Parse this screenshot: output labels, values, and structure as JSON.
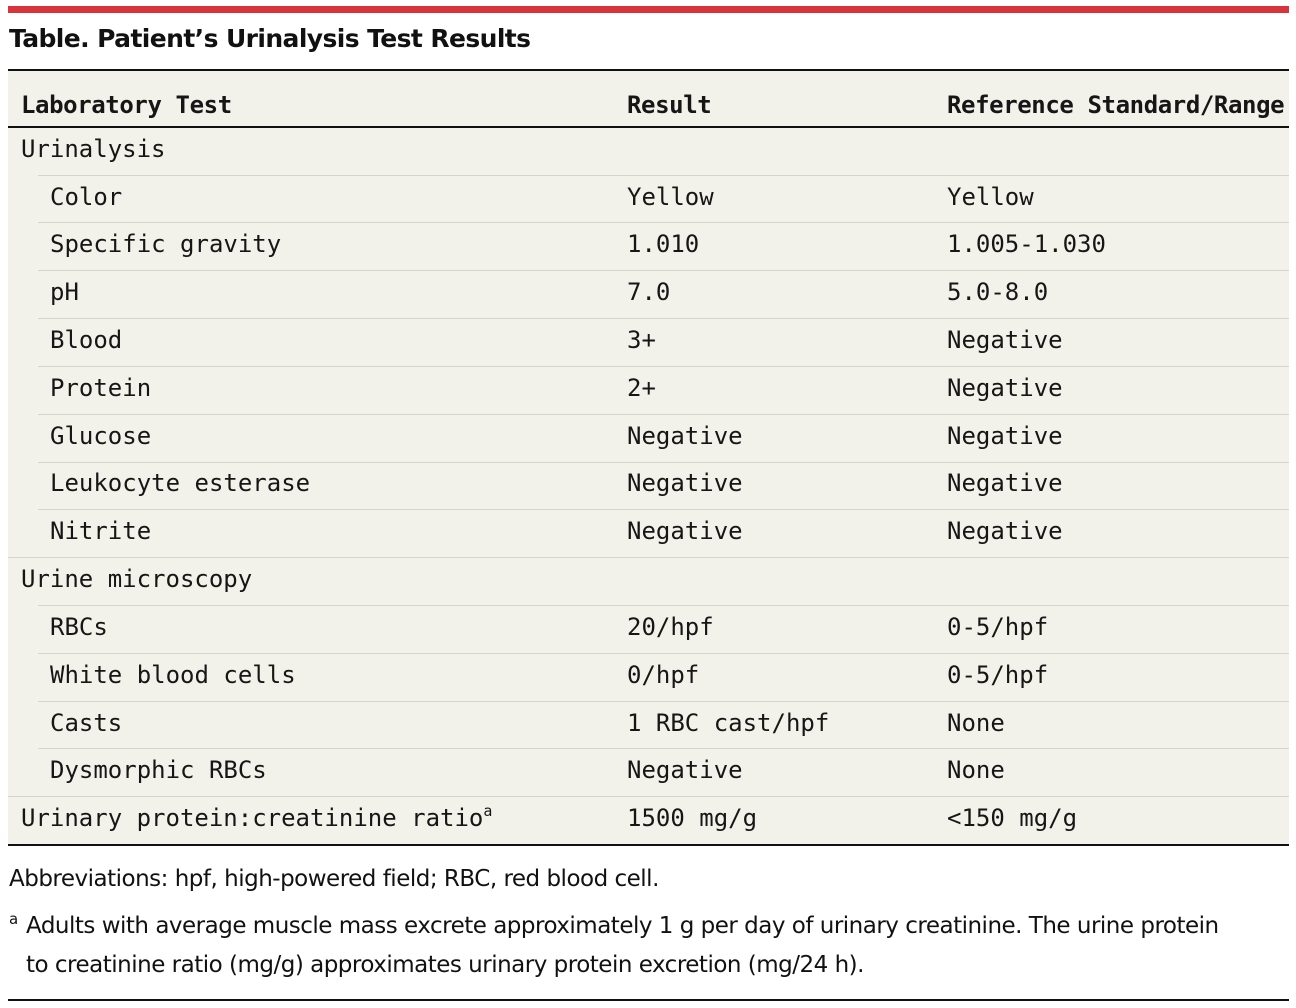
{
  "table": {
    "title": "Table. Patient’s Urinalysis Test Results",
    "headers": {
      "test": "Laboratory Test",
      "result": "Result",
      "reference": "Reference Standard/Range"
    },
    "sections": [
      {
        "label": "Urinalysis"
      },
      {
        "label": "Urine microscopy"
      }
    ],
    "urinalysis_rows": [
      {
        "test": "Color",
        "result": "Yellow",
        "reference": "Yellow"
      },
      {
        "test": "Specific gravity",
        "result": "1.010",
        "reference": "1.005-1.030"
      },
      {
        "test": "pH",
        "result": "7.0",
        "reference": "5.0-8.0"
      },
      {
        "test": "Blood",
        "result": "3+",
        "reference": "Negative"
      },
      {
        "test": "Protein",
        "result": "2+",
        "reference": "Negative"
      },
      {
        "test": "Glucose",
        "result": "Negative",
        "reference": "Negative"
      },
      {
        "test": "Leukocyte esterase",
        "result": "Negative",
        "reference": "Negative"
      },
      {
        "test": "Nitrite",
        "result": "Negative",
        "reference": "Negative"
      }
    ],
    "microscopy_rows": [
      {
        "test": "RBCs",
        "result": "20/hpf",
        "reference": "0-5/hpf"
      },
      {
        "test": "White blood cells",
        "result": "0/hpf",
        "reference": "0-5/hpf"
      },
      {
        "test": "Casts",
        "result": "1 RBC cast/hpf",
        "reference": "None"
      },
      {
        "test": "Dysmorphic RBCs",
        "result": "Negative",
        "reference": "None"
      }
    ],
    "ratio_row": {
      "test": "Urinary protein:creatinine ratio",
      "superscript": "a",
      "result": "1500 mg/g",
      "reference": "<150 mg/g"
    }
  },
  "footnotes": {
    "abbreviations": "Abbreviations: hpf, high-powered field; RBC, red blood cell.",
    "note_mark": "a",
    "note_line1": "Adults with average muscle mass excrete approximately 1 g per day of urinary creatinine. The urine protein",
    "note_line2": "to creatinine ratio (mg/g) approximates urinary protein excretion (mg/24 h)."
  },
  "colors": {
    "accent_rule": "#d9343b",
    "table_background": "#f3f2ea"
  }
}
